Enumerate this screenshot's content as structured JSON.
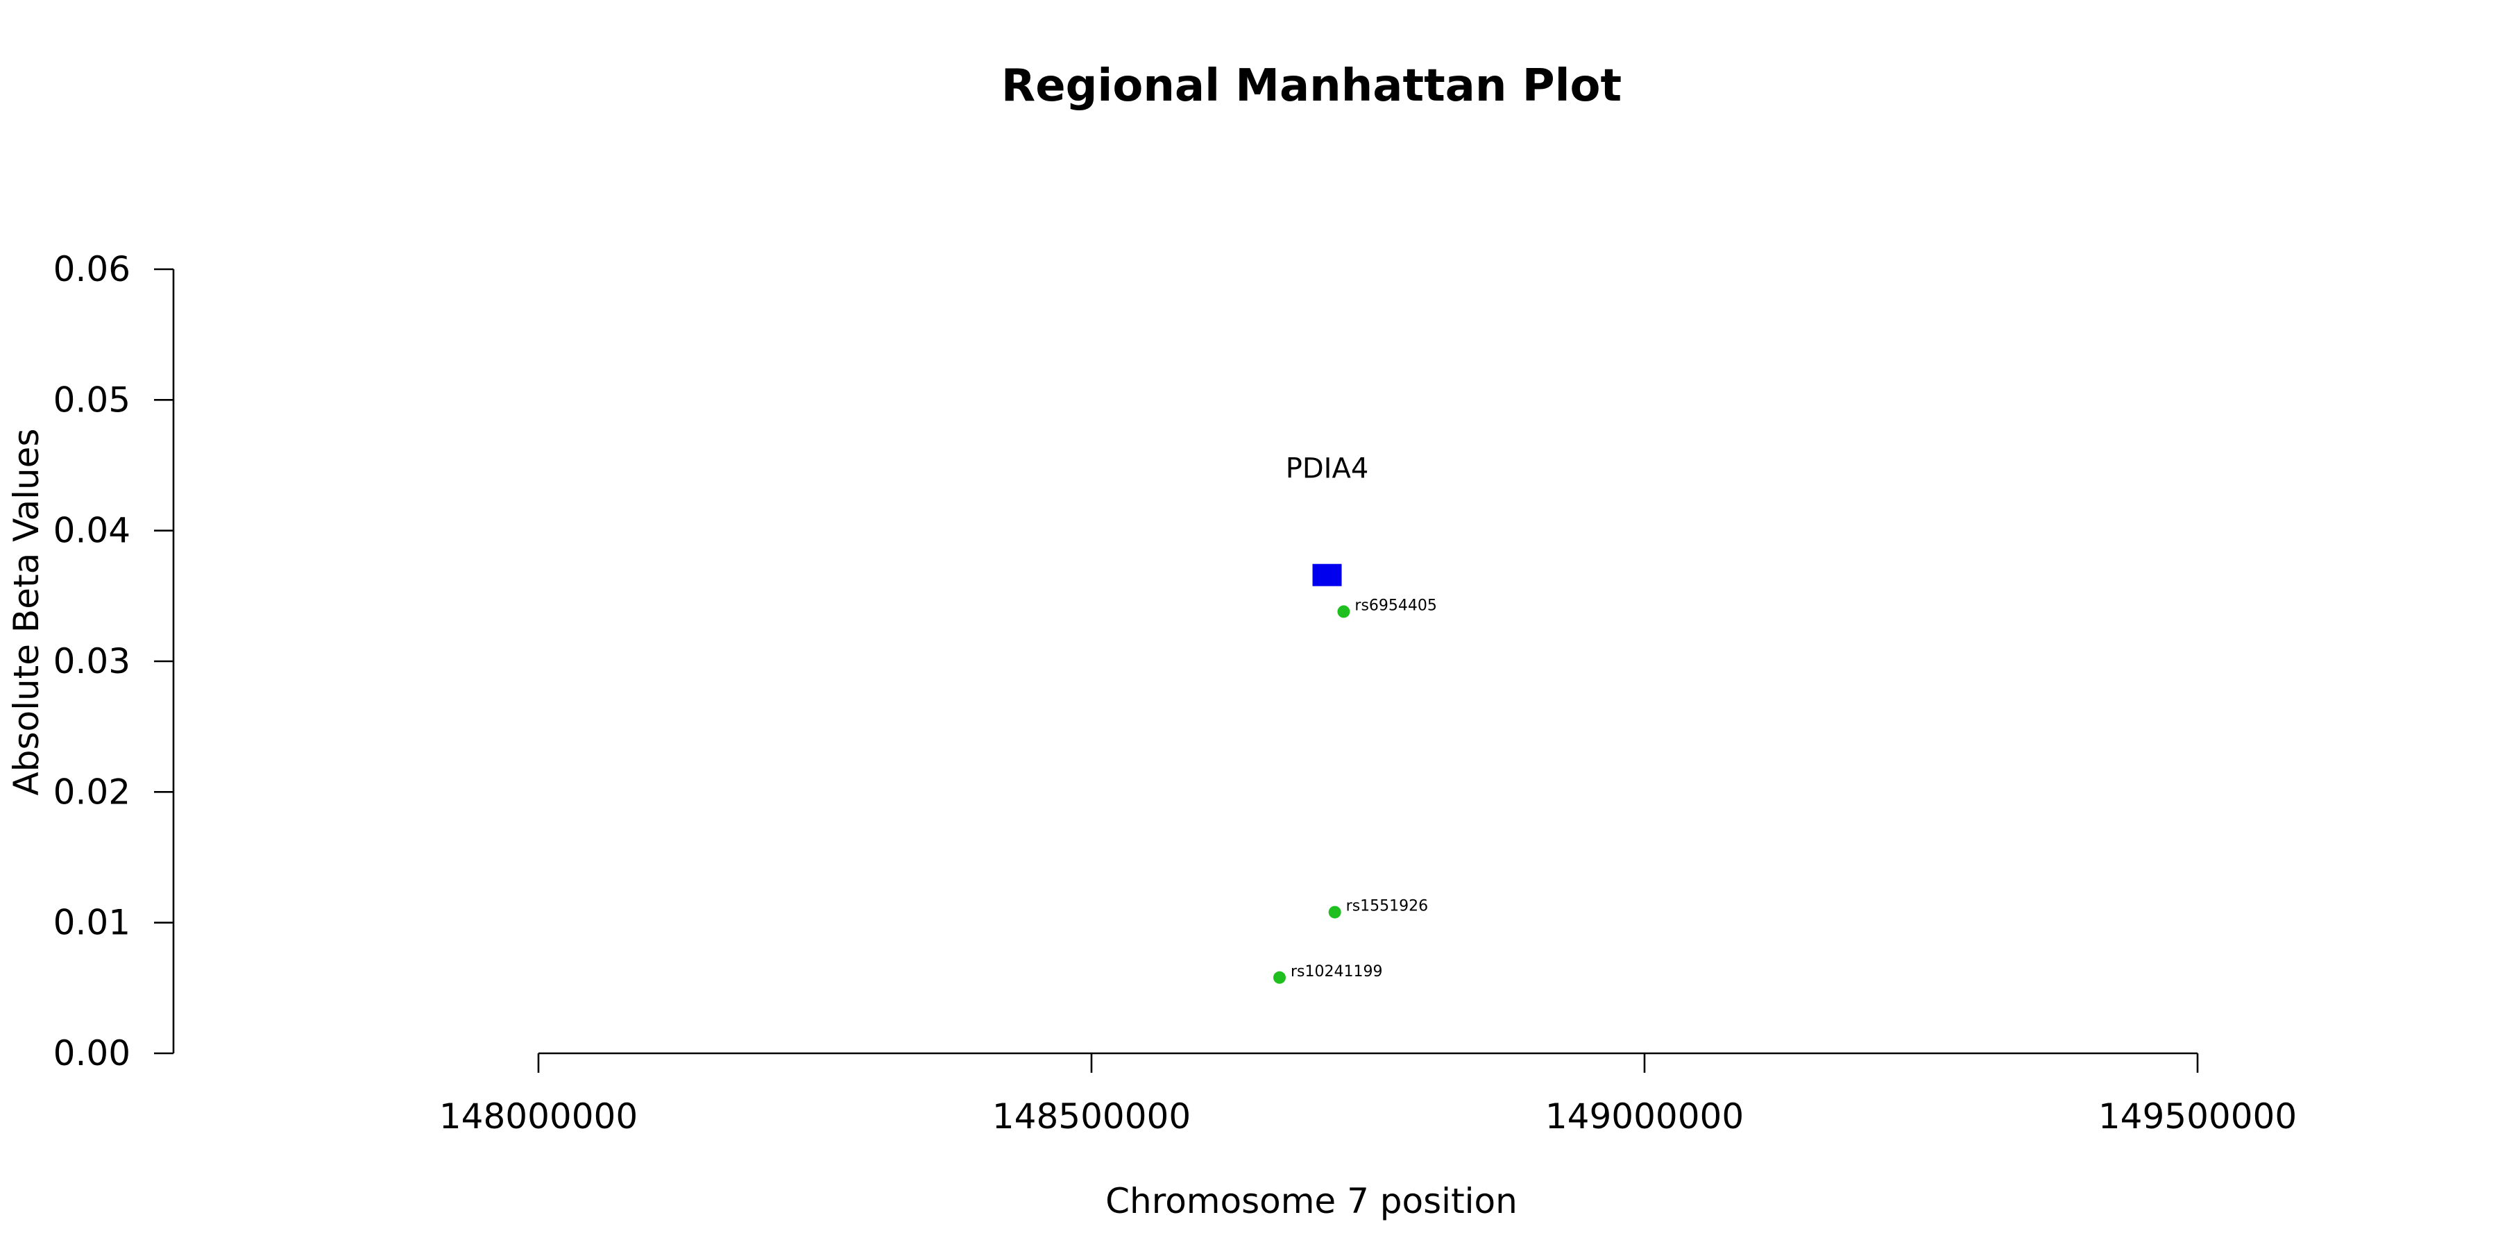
{
  "chart_data": {
    "type": "scatter",
    "title": "Regional Manhattan Plot",
    "xlabel": "Chromosome 7 position",
    "ylabel": "Absolute Beta Values",
    "xlim": [
      148000000,
      149500000
    ],
    "ylim": [
      0,
      0.06
    ],
    "x_ticks": [
      148000000,
      148500000,
      149000000,
      149500000
    ],
    "x_tick_labels": [
      "148000000",
      "148500000",
      "149000000",
      "149500000"
    ],
    "y_ticks": [
      0,
      0.01,
      0.02,
      0.03,
      0.04,
      0.05,
      0.06
    ],
    "y_tick_labels": [
      "0.00",
      "0.01",
      "0.02",
      "0.03",
      "0.04",
      "0.05",
      "0.06"
    ],
    "grid": false,
    "colors": {
      "snp": "#1fbf1f",
      "gene": "#0000ee"
    },
    "gene_point": {
      "label": "PDIA4",
      "x": 148713000,
      "y": 0.0366,
      "marker": "square"
    },
    "series": [
      {
        "marker": "circle",
        "points": [
          {
            "label": "rs6954405",
            "x": 148728000,
            "y": 0.0338
          },
          {
            "label": "rs1551926",
            "x": 148720000,
            "y": 0.0108
          },
          {
            "label": "rs10241199",
            "x": 148670000,
            "y": 0.0058
          }
        ]
      }
    ]
  }
}
